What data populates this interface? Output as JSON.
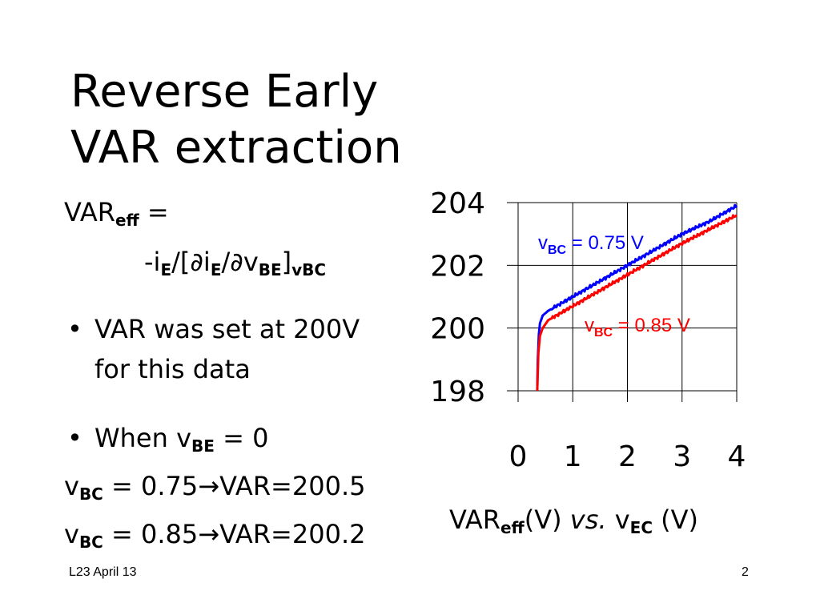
{
  "slide": {
    "title_line1": "Reverse Early",
    "title_line2": "VAR extraction",
    "formula": {
      "lhs_main": "VAR",
      "lhs_sub": "eff",
      "lhs_eq": " =",
      "rhs_p1": "-i",
      "rhs_sub1": "E",
      "rhs_p2": "/[∂i",
      "rhs_sub2": "E",
      "rhs_p3": "/∂v",
      "rhs_sub3": "BE",
      "rhs_p4": "]",
      "rhs_sub4": "vBC"
    },
    "bullet1_line1": "VAR was set at 200V",
    "bullet1_line2": "for this data",
    "bullet2_p1": "When v",
    "bullet2_sub": "BE",
    "bullet2_p2": " = 0",
    "result1": {
      "pre": "v",
      "sub": "BC",
      "post": " = 0.75→VAR=200.5"
    },
    "result2": {
      "pre": "v",
      "sub": "BC",
      "post": " = 0.85→VAR=200.2"
    },
    "caption": {
      "p1": "VAR",
      "sub1": "eff",
      "p2": "(V) ",
      "vs": "vs.",
      "p3": " v",
      "sub2": "EC",
      "p4": " (V)"
    },
    "footer_left": "L23 April 13",
    "page_number": "2"
  },
  "chart_data": {
    "type": "line",
    "xlim": [
      0,
      4
    ],
    "ylim": [
      198,
      204
    ],
    "x_ticks": [
      "0",
      "1",
      "2",
      "3",
      "4"
    ],
    "y_ticks": [
      "198",
      "200",
      "202",
      "204"
    ],
    "grid": true,
    "series": [
      {
        "name_pre": "v",
        "name_sub": "BC",
        "name_post": " = 0.75 V",
        "color": "#0000ff",
        "x": [
          0.35,
          0.36,
          0.38,
          0.4,
          0.45,
          0.55,
          0.7,
          1.0,
          1.5,
          2.0,
          2.5,
          3.0,
          3.5,
          4.0
        ],
        "y": [
          198.0,
          199.0,
          199.8,
          200.15,
          200.4,
          200.55,
          200.7,
          201.0,
          201.5,
          202.0,
          202.5,
          203.0,
          203.4,
          203.9
        ]
      },
      {
        "name_pre": "v",
        "name_sub": "BC",
        "name_post": " = 0.85 V",
        "color": "#ff0000",
        "x": [
          0.35,
          0.37,
          0.4,
          0.45,
          0.55,
          0.7,
          1.0,
          1.5,
          2.0,
          2.5,
          3.0,
          3.5,
          4.0
        ],
        "y": [
          198.0,
          199.2,
          199.75,
          200.0,
          200.25,
          200.4,
          200.7,
          201.2,
          201.7,
          202.2,
          202.7,
          203.15,
          203.6
        ]
      }
    ]
  }
}
